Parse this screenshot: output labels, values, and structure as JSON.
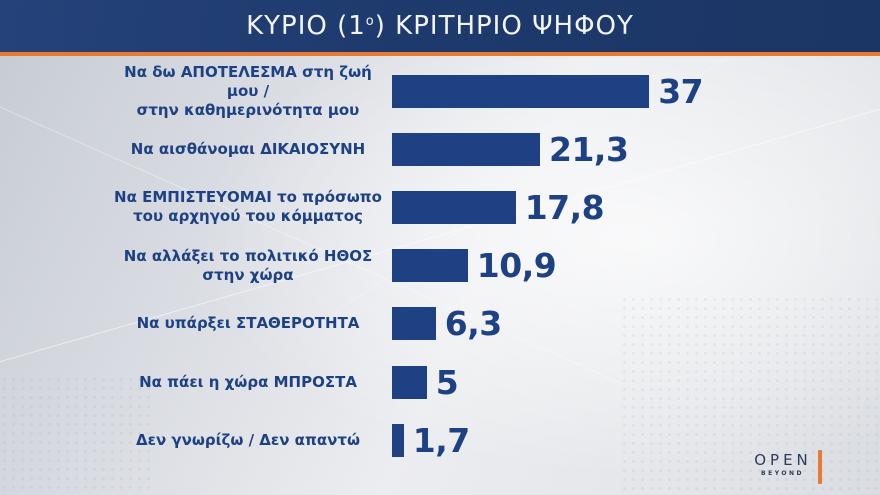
{
  "header": {
    "title_pre": "ΚΥΡΙΟ (1",
    "title_sup": "ο",
    "title_post": ") ΚΡΙΤΗΡΙΟ ΨΗΦΟΥ"
  },
  "chart_data": {
    "type": "bar",
    "orientation": "horizontal",
    "title": "ΚΥΡΙΟ (1ο) ΚΡΙΤΗΡΙΟ ΨΗΦΟΥ",
    "categories": [
      "Να δω ΑΠΟΤΕΛΕΣΜΑ στη ζωή μου / στην καθημερινότητα μου",
      "Να αισθάνομαι ΔΙΚΑΙΟΣΥΝΗ",
      "Να ΕΜΠΙΣΤΕΥΟΜΑΙ το πρόσωπο του αρχηγού του κόμματος",
      "Να αλλάξει το πολιτικό ΗΘΟΣ στην χώρα",
      "Να υπάρξει ΣΤΑΘΕΡΟΤΗΤΑ",
      "Να πάει η χώρα ΜΠΡΟΣΤΑ",
      "Δεν γνωρίζω / Δεν απαντώ"
    ],
    "label_lines": [
      [
        "Να δω ΑΠΟΤΕΛΕΣΜΑ στη ζωή μου /",
        "στην καθημερινότητα μου"
      ],
      [
        "Να αισθάνομαι ΔΙΚΑΙΟΣΥΝΗ"
      ],
      [
        "Να ΕΜΠΙΣΤΕΥΟΜΑΙ το πρόσωπο",
        "του αρχηγού του κόμματος"
      ],
      [
        "Να αλλάξει το πολιτικό ΗΘΟΣ",
        "στην χώρα"
      ],
      [
        "Να υπάρξει ΣΤΑΘΕΡΟΤΗΤΑ"
      ],
      [
        "Να πάει η χώρα ΜΠΡΟΣΤΑ"
      ],
      [
        "Δεν γνωρίζω / Δεν απαντώ"
      ]
    ],
    "values": [
      37,
      21.3,
      17.8,
      10.9,
      6.3,
      5,
      1.7
    ],
    "value_labels": [
      "37",
      "21,3",
      "17,8",
      "10,9",
      "6,3",
      "5",
      "1,7"
    ],
    "xlim": [
      0,
      40
    ],
    "grid": false,
    "legend": false,
    "bar_color": "#1d4183",
    "value_label_color": "#1d4183"
  },
  "colors": {
    "header_bg": "#1e3a6d",
    "accent_orange": "#e87a33",
    "navy": "#1d4183",
    "background": "#dcdfe4",
    "title_text": "#f2f4f8",
    "logo_navy": "#2e3a59"
  },
  "footer": {
    "logo_main": "OPEN",
    "logo_sub": "BEYOND"
  }
}
